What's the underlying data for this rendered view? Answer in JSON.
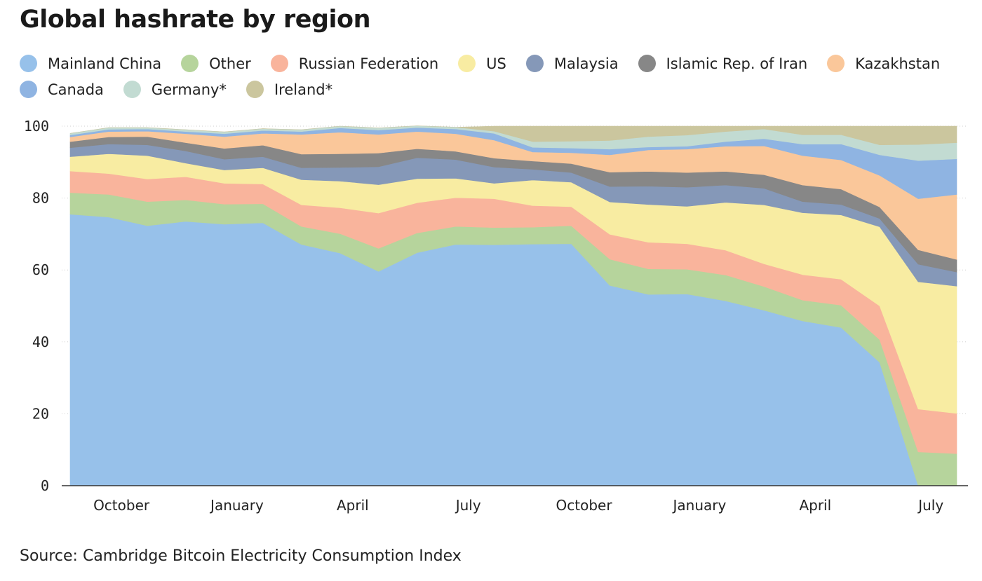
{
  "title": "Global hashrate by region",
  "source": "Source: Cambridge Bitcoin Electricity Consumption Index",
  "chart_data": {
    "type": "area",
    "stacked": true,
    "grid": true,
    "legend_placement": "top",
    "ylim": [
      0,
      100
    ],
    "yticks": [
      "0",
      "20",
      "40",
      "60",
      "80",
      "100"
    ],
    "xticks": [
      {
        "label": "October",
        "pos": 1.33
      },
      {
        "label": "January",
        "pos": 4.33
      },
      {
        "label": "April",
        "pos": 7.33
      },
      {
        "label": "July",
        "pos": 10.33
      },
      {
        "label": "October",
        "pos": 13.33
      },
      {
        "label": "January",
        "pos": 16.33
      },
      {
        "label": "April",
        "pos": 19.33
      },
      {
        "label": "July",
        "pos": 22.33
      }
    ],
    "x": [
      "2019-09",
      "2019-10",
      "2019-11",
      "2019-12",
      "2020-01",
      "2020-02",
      "2020-03",
      "2020-04",
      "2020-05",
      "2020-06",
      "2020-07",
      "2020-08",
      "2020-09",
      "2020-10",
      "2020-11",
      "2020-12",
      "2021-01",
      "2021-02",
      "2021-03",
      "2021-04",
      "2021-05",
      "2021-06",
      "2021-07",
      "2021-08"
    ],
    "series": [
      {
        "name": "Mainland China",
        "color": "#97c1ea",
        "values": [
          75.5,
          74.7,
          72.3,
          73.5,
          72.7,
          73.1,
          67.1,
          64.7,
          59.6,
          64.8,
          67.1,
          67.0,
          67.2,
          67.3,
          55.7,
          53.2,
          53.3,
          51.4,
          48.8,
          45.8,
          44.0,
          34.3,
          0.0,
          0.0
        ]
      },
      {
        "name": "Other",
        "color": "#b6d49c",
        "values": [
          6.0,
          6.3,
          6.7,
          6.0,
          5.6,
          5.3,
          5.0,
          5.4,
          6.4,
          5.5,
          5.0,
          4.8,
          4.7,
          5.0,
          7.3,
          7.1,
          6.9,
          7.2,
          6.6,
          5.8,
          6.2,
          6.3,
          9.4,
          8.9
        ]
      },
      {
        "name": "Russian Federation",
        "color": "#f9b49c",
        "values": [
          6.0,
          5.8,
          6.3,
          6.4,
          5.8,
          5.5,
          6.0,
          7.2,
          9.8,
          8.4,
          8.0,
          8.0,
          6.0,
          5.3,
          6.9,
          7.4,
          7.1,
          6.9,
          6.3,
          7.1,
          7.2,
          9.4,
          11.9,
          11.2
        ]
      },
      {
        "name": "US",
        "color": "#f8eca2",
        "values": [
          4.0,
          5.5,
          6.5,
          3.8,
          3.7,
          4.5,
          7.0,
          7.4,
          7.9,
          6.7,
          5.4,
          4.3,
          7.1,
          6.8,
          9.0,
          10.5,
          10.4,
          13.3,
          16.4,
          17.2,
          17.9,
          22.0,
          35.4,
          35.4
        ]
      },
      {
        "name": "Malaysia",
        "color": "#8598b8",
        "values": [
          2.5,
          2.7,
          3.0,
          3.4,
          3.0,
          3.1,
          3.3,
          3.8,
          5.0,
          5.8,
          5.2,
          4.5,
          3.0,
          2.7,
          4.3,
          5.1,
          5.3,
          4.8,
          4.6,
          3.1,
          2.9,
          2.3,
          4.9,
          3.9
        ]
      },
      {
        "name": "Islamic Rep. of Iran",
        "color": "#878787",
        "values": [
          1.7,
          2.0,
          2.3,
          2.3,
          3.0,
          3.2,
          3.8,
          3.8,
          3.8,
          2.5,
          2.3,
          2.5,
          2.3,
          2.5,
          4.0,
          4.1,
          4.1,
          3.8,
          3.8,
          4.6,
          4.3,
          3.2,
          4.0,
          3.5
        ]
      },
      {
        "name": "Kazakhstan",
        "color": "#fac79a",
        "values": [
          1.3,
          1.5,
          1.5,
          2.5,
          3.3,
          3.3,
          5.5,
          6.0,
          5.2,
          4.8,
          4.9,
          5.0,
          2.5,
          3.0,
          4.8,
          6.0,
          6.5,
          7.0,
          8.0,
          8.2,
          8.1,
          8.8,
          14.2,
          18.1
        ]
      },
      {
        "name": "Canada",
        "color": "#8fb4e2",
        "values": [
          0.5,
          0.6,
          0.6,
          0.6,
          0.8,
          0.8,
          0.8,
          1.2,
          1.2,
          1.1,
          1.3,
          1.9,
          1.3,
          1.3,
          1.6,
          0.8,
          0.8,
          1.3,
          2.0,
          3.2,
          4.4,
          5.7,
          10.6,
          9.9
        ]
      },
      {
        "name": "Germany*",
        "color": "#c2dbd2",
        "values": [
          0.5,
          0.5,
          0.4,
          0.5,
          0.5,
          0.5,
          0.5,
          0.5,
          0.6,
          0.5,
          0.5,
          0.6,
          1.6,
          1.9,
          2.4,
          2.9,
          3.1,
          2.8,
          2.7,
          2.6,
          2.6,
          2.8,
          4.5,
          4.5
        ]
      },
      {
        "name": "Ireland*",
        "color": "#cbc69e",
        "values": [
          0.0,
          0.0,
          0.0,
          0.0,
          0.0,
          0.0,
          0.0,
          0.0,
          0.0,
          0.0,
          0.0,
          1.4,
          4.3,
          4.2,
          4.0,
          2.9,
          2.5,
          1.5,
          0.8,
          2.4,
          2.4,
          5.2,
          5.1,
          4.6
        ]
      }
    ]
  }
}
